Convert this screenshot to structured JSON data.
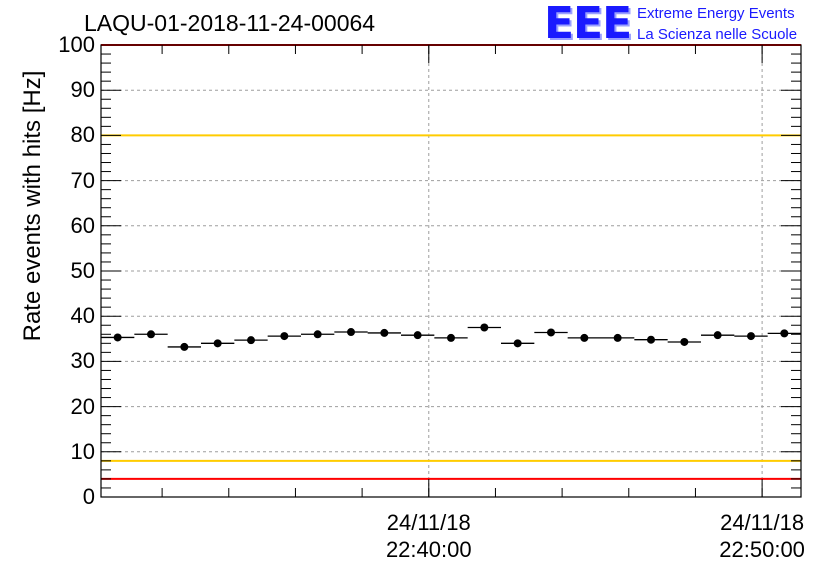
{
  "title": "LAQU-01-2018-11-24-00064",
  "logo": {
    "mark": "EEE",
    "line1": "Extreme Energy Events",
    "line2": "La Scienza nelle Scuole",
    "color": "#1a1aff"
  },
  "colors": {
    "threshold_red": "#ff0000",
    "threshold_yellow": "#ffcc00",
    "points": "#000000",
    "grid": "#9e9e9e"
  },
  "chart_data": {
    "type": "scatter",
    "title": "LAQU-01-2018-11-24-00064",
    "xlabel": "",
    "ylabel": "Rate events with hits [Hz]",
    "ylim": [
      0,
      100
    ],
    "yticks": [
      0,
      10,
      20,
      30,
      40,
      50,
      60,
      70,
      80,
      90,
      100
    ],
    "xlim": [
      "2018-11-24 22:30:10",
      "2018-11-24 22:51:10"
    ],
    "xticks": [
      {
        "value": "2018-11-24 22:40:00",
        "line1": "24/11/18",
        "line2": "22:40:00"
      },
      {
        "value": "2018-11-24 22:50:00",
        "line1": "24/11/18",
        "line2": "22:50:00"
      }
    ],
    "grid": true,
    "bin_width_seconds": 60,
    "x": [
      "2018-11-24 22:30:40",
      "2018-11-24 22:31:40",
      "2018-11-24 22:32:40",
      "2018-11-24 22:33:40",
      "2018-11-24 22:34:40",
      "2018-11-24 22:35:40",
      "2018-11-24 22:36:40",
      "2018-11-24 22:37:40",
      "2018-11-24 22:38:40",
      "2018-11-24 22:39:40",
      "2018-11-24 22:40:40",
      "2018-11-24 22:41:40",
      "2018-11-24 22:42:40",
      "2018-11-24 22:43:40",
      "2018-11-24 22:44:40",
      "2018-11-24 22:45:40",
      "2018-11-24 22:46:40",
      "2018-11-24 22:47:40",
      "2018-11-24 22:48:40",
      "2018-11-24 22:49:40",
      "2018-11-24 22:50:40"
    ],
    "series": [
      {
        "values": [
          35.3,
          36.0,
          33.2,
          34.0,
          34.7,
          35.6,
          36.0,
          36.5,
          36.3,
          35.8,
          35.2,
          37.5,
          34.0,
          36.4,
          35.2,
          35.2,
          34.8,
          34.3,
          35.8,
          35.6,
          36.2
        ]
      }
    ],
    "threshold_lines": [
      {
        "value": 100,
        "color": "red"
      },
      {
        "value": 80,
        "color": "yellow"
      },
      {
        "value": 8,
        "color": "yellow"
      },
      {
        "value": 4,
        "color": "red"
      }
    ]
  }
}
